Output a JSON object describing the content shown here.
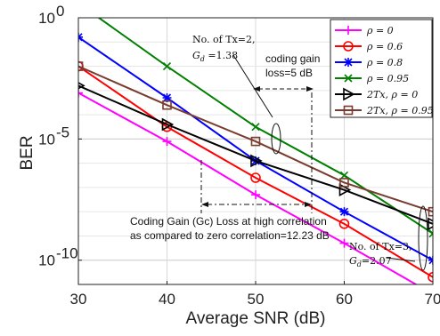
{
  "chart_data": {
    "type": "line",
    "xlabel": "Average  SNR (dB)",
    "ylabel": "BER",
    "xlim": [
      30,
      70
    ],
    "ylim_log10": [
      -11,
      0
    ],
    "yscale": "log",
    "grid": true,
    "legend_position": "top-right",
    "x": [
      30,
      40,
      50,
      60,
      70
    ],
    "x_tick_labels": [
      "30",
      "40",
      "50",
      "60",
      "70"
    ],
    "y_ticks_log10": [
      0,
      -5,
      -10
    ],
    "y_tick_labels": [
      {
        "base": "10",
        "exp": "0"
      },
      {
        "base": "10",
        "exp": "-5"
      },
      {
        "base": "10",
        "exp": "-10"
      }
    ],
    "series": [
      {
        "name": "ρ = 0",
        "color": "#ff00ff",
        "marker": "plus",
        "log10_values": [
          -3.1,
          -5.1,
          -7.3,
          -9.3,
          -11.4
        ]
      },
      {
        "name": "ρ = 0.6",
        "color": "#ff0000",
        "marker": "circle",
        "log10_values": [
          -2.0,
          -4.5,
          -6.6,
          -8.5,
          -10.7
        ]
      },
      {
        "name": "ρ = 0.8",
        "color": "#0000ff",
        "marker": "asterisk",
        "log10_values": [
          -0.8,
          -3.3,
          -5.9,
          -8.0,
          -10.0
        ]
      },
      {
        "name": "ρ = 0.95",
        "color": "#008000",
        "marker": "x",
        "log10_values": [
          0.6,
          -2.0,
          -4.5,
          -6.5,
          -8.9
        ]
      },
      {
        "name": "2Tx, ρ = 0",
        "color": "#000000",
        "marker": "triangle-right",
        "log10_values": [
          -2.8,
          -4.4,
          -5.9,
          -7.1,
          -8.5
        ]
      },
      {
        "name": "2Tx, ρ = 0.95",
        "color": "#7a3b2e",
        "marker": "square",
        "log10_values": [
          -2.0,
          -3.6,
          -5.1,
          -6.8,
          -8.0
        ]
      }
    ],
    "annotations": {
      "tx2_line1": "No. of Tx=2,",
      "tx2_gd": "G",
      "tx2_gd_sub": "d",
      "tx2_gd_val": " =1.38",
      "coding_gain_line1": "coding gain",
      "coding_gain_line2": "loss=5 dB",
      "gc_loss_line1": "Coding Gain (Gc) Loss at high correlation",
      "gc_loss_line2": "as compared to zero correlation=12.23 dB",
      "tx3_line1": "No. of Tx=3,",
      "tx3_gd": "G",
      "tx3_gd_sub": "d",
      "tx3_gd_val": "=2.07"
    }
  }
}
